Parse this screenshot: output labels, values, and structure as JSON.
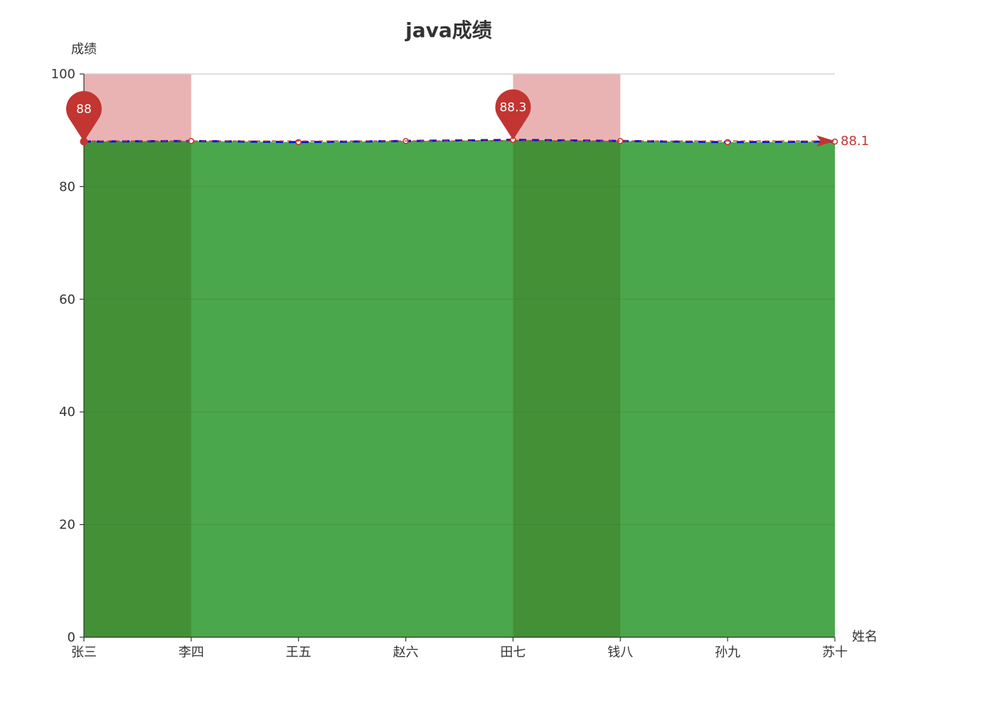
{
  "chart_data": {
    "type": "line",
    "title": "java成绩",
    "xlabel": "姓名",
    "ylabel": "成绩",
    "categories": [
      "张三",
      "李四",
      "王五",
      "赵六",
      "田七",
      "钱八",
      "孙九",
      "苏十"
    ],
    "series": [
      {
        "values": [
          88.0,
          88.1,
          87.9,
          88.1,
          88.3,
          88.1,
          87.9,
          88.0
        ]
      }
    ],
    "ylim": [
      0,
      100
    ],
    "yticks": [
      0,
      20,
      40,
      60,
      80,
      100
    ],
    "area_fill": true,
    "mark_points": [
      {
        "label": "88",
        "category": "张三",
        "value": 88.0
      },
      {
        "label": "88.3",
        "category": "田七",
        "value": 88.3
      }
    ],
    "mark_line": {
      "label": "88.1",
      "value": 88.1
    },
    "mark_areas": [
      {
        "from": "张三",
        "to": "李四",
        "y_from": 88,
        "y_to": 100
      },
      {
        "from": "田七",
        "to": "钱八",
        "y_from": 88,
        "y_to": 100
      }
    ],
    "grid": true,
    "colors": {
      "area": "#4ba74b",
      "area_dark": "#448e35",
      "mark_area": "#e8afb0",
      "marker": "#c23531",
      "dash_line": "#1010d8",
      "text": "#333333",
      "gridline": "#cccccc"
    }
  }
}
